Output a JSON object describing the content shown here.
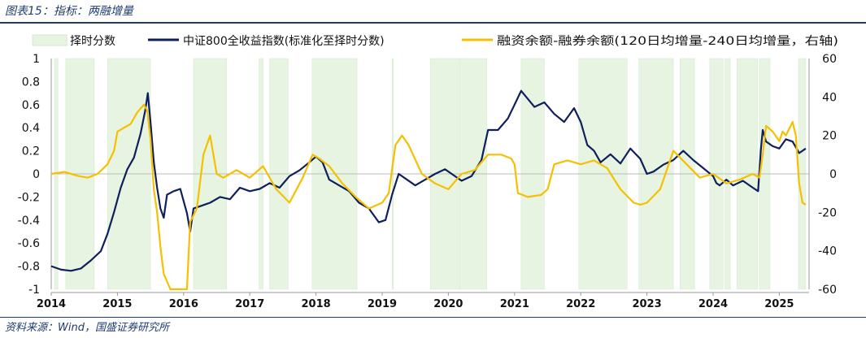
{
  "header": {
    "title": "图表15：指标：两融增量"
  },
  "footer": {
    "source": "资料来源：Wind，国盛证券研究所"
  },
  "colors": {
    "shade": "#e7f4e2",
    "index_line": "#0f1f5c",
    "margin_line": "#f5c000",
    "rule": "#1f3b6f"
  },
  "chart_data": {
    "type": "line",
    "title": "",
    "legend": [
      "择时分数",
      "中证800全收益指数(标准化至择时分数)",
      "融资余额-融券余额(120日均增量-240日均增量，右轴)"
    ],
    "legend_position": "top",
    "y_left": {
      "min": -1,
      "max": 1,
      "ticks": [
        "1",
        "0.8",
        "0.6",
        "0.4",
        "0.2",
        "0",
        "-0.2",
        "-0.4",
        "-0.6",
        "-0.8",
        "-1"
      ]
    },
    "y_right": {
      "min": -60,
      "max": 60,
      "ticks": [
        "60",
        "40",
        "20",
        "0",
        "-20",
        "-40",
        "-60"
      ]
    },
    "x_range": [
      2014.0,
      2025.45
    ],
    "x_ticks": [
      "2014",
      "2015",
      "2016",
      "2017",
      "2018",
      "2019",
      "2020",
      "2021",
      "2022",
      "2023",
      "2024",
      "2025"
    ],
    "timing_score_periods": [
      [
        2014.05,
        2014.1
      ],
      [
        2014.22,
        2014.65
      ],
      [
        2014.85,
        2015.5
      ],
      [
        2016.15,
        2016.65
      ],
      [
        2017.14,
        2017.2
      ],
      [
        2017.3,
        2017.58
      ],
      [
        2017.94,
        2018.62
      ],
      [
        2019.15,
        2019.17
      ],
      [
        2019.73,
        2020.17
      ],
      [
        2020.17,
        2020.58
      ],
      [
        2021.1,
        2021.45
      ],
      [
        2021.97,
        2022.7
      ],
      [
        2022.88,
        2023.4
      ],
      [
        2023.5,
        2023.72
      ],
      [
        2023.95,
        2024.15
      ],
      [
        2024.18,
        2024.26
      ],
      [
        2024.36,
        2024.67
      ],
      [
        2024.7,
        2024.86
      ],
      [
        2025.29,
        2025.4
      ]
    ],
    "series": [
      {
        "name": "中证800全收益指数(标准化至择时分数)",
        "axis": "left",
        "x": [
          2014.0,
          2014.15,
          2014.3,
          2014.45,
          2014.6,
          2014.75,
          2014.85,
          2014.95,
          2015.05,
          2015.15,
          2015.25,
          2015.35,
          2015.42,
          2015.46,
          2015.5,
          2015.55,
          2015.6,
          2015.65,
          2015.7,
          2015.75,
          2015.85,
          2015.95,
          2016.05,
          2016.1,
          2016.15,
          2016.25,
          2016.4,
          2016.55,
          2016.7,
          2016.85,
          2017.0,
          2017.15,
          2017.3,
          2017.45,
          2017.6,
          2017.75,
          2017.9,
          2018.0,
          2018.1,
          2018.2,
          2018.35,
          2018.5,
          2018.65,
          2018.8,
          2018.95,
          2019.05,
          2019.15,
          2019.25,
          2019.35,
          2019.5,
          2019.65,
          2019.8,
          2019.95,
          2020.05,
          2020.2,
          2020.35,
          2020.5,
          2020.6,
          2020.75,
          2020.9,
          2021.0,
          2021.1,
          2021.2,
          2021.3,
          2021.45,
          2021.6,
          2021.75,
          2021.9,
          2022.0,
          2022.1,
          2022.2,
          2022.3,
          2022.45,
          2022.6,
          2022.75,
          2022.9,
          2023.0,
          2023.1,
          2023.25,
          2023.4,
          2023.55,
          2023.7,
          2023.85,
          2024.0,
          2024.05,
          2024.1,
          2024.2,
          2024.3,
          2024.45,
          2024.6,
          2024.68,
          2024.72,
          2024.75,
          2024.8,
          2024.9,
          2025.0,
          2025.1,
          2025.2,
          2025.3,
          2025.4
        ],
        "y": [
          -0.8,
          -0.83,
          -0.84,
          -0.82,
          -0.75,
          -0.67,
          -0.52,
          -0.33,
          -0.12,
          0.04,
          0.14,
          0.35,
          0.55,
          0.7,
          0.45,
          0.1,
          -0.12,
          -0.3,
          -0.38,
          -0.18,
          -0.15,
          -0.13,
          -0.34,
          -0.5,
          -0.3,
          -0.28,
          -0.25,
          -0.2,
          -0.22,
          -0.12,
          -0.15,
          -0.13,
          -0.08,
          -0.12,
          -0.02,
          0.03,
          0.1,
          0.15,
          0.1,
          -0.05,
          -0.1,
          -0.15,
          -0.25,
          -0.3,
          -0.42,
          -0.4,
          -0.18,
          0.0,
          -0.04,
          -0.1,
          -0.05,
          0.0,
          0.04,
          0.0,
          -0.06,
          -0.02,
          0.12,
          0.38,
          0.38,
          0.48,
          0.6,
          0.72,
          0.65,
          0.58,
          0.62,
          0.52,
          0.45,
          0.57,
          0.45,
          0.25,
          0.2,
          0.1,
          0.17,
          0.09,
          0.22,
          0.13,
          0.0,
          0.02,
          0.08,
          0.12,
          0.2,
          0.12,
          0.05,
          -0.02,
          -0.08,
          -0.1,
          -0.05,
          -0.1,
          -0.06,
          -0.12,
          -0.15,
          0.2,
          0.38,
          0.28,
          0.24,
          0.22,
          0.3,
          0.28,
          0.18,
          0.22
        ]
      },
      {
        "name": "融资余额-融券余额(120日均增量-240日均增量，右轴)",
        "axis": "right",
        "x": [
          2014.0,
          2014.2,
          2014.4,
          2014.55,
          2014.7,
          2014.85,
          2014.95,
          2015.0,
          2015.1,
          2015.2,
          2015.3,
          2015.4,
          2015.45,
          2015.5,
          2015.55,
          2015.6,
          2015.65,
          2015.7,
          2015.8,
          2015.9,
          2016.0,
          2016.05,
          2016.1,
          2016.2,
          2016.3,
          2016.4,
          2016.5,
          2016.6,
          2016.7,
          2016.8,
          2016.9,
          2017.0,
          2017.2,
          2017.4,
          2017.6,
          2017.8,
          2017.95,
          2018.05,
          2018.2,
          2018.4,
          2018.6,
          2018.8,
          2019.0,
          2019.1,
          2019.2,
          2019.3,
          2019.4,
          2019.6,
          2019.8,
          2020.0,
          2020.2,
          2020.4,
          2020.6,
          2020.8,
          2020.95,
          2021.0,
          2021.05,
          2021.2,
          2021.4,
          2021.5,
          2021.6,
          2021.8,
          2022.0,
          2022.2,
          2022.4,
          2022.6,
          2022.8,
          2022.9,
          2023.0,
          2023.2,
          2023.4,
          2023.6,
          2023.8,
          2024.0,
          2024.2,
          2024.4,
          2024.6,
          2024.7,
          2024.75,
          2024.8,
          2024.9,
          2025.0,
          2025.05,
          2025.1,
          2025.2,
          2025.25,
          2025.3,
          2025.35,
          2025.4
        ],
        "y": [
          0,
          1,
          -1,
          -2,
          0,
          5,
          12,
          22,
          24,
          26,
          32,
          36,
          33,
          18,
          -8,
          -20,
          -38,
          -52,
          -60,
          -60,
          -60,
          -60,
          -25,
          -18,
          10,
          20,
          0,
          -2,
          0,
          2,
          0,
          -2,
          4,
          -8,
          -15,
          -2,
          10,
          8,
          4,
          -5,
          -12,
          -18,
          -15,
          -10,
          15,
          20,
          15,
          0,
          -5,
          -8,
          0,
          2,
          10,
          10,
          8,
          5,
          -10,
          -12,
          -11,
          -8,
          5,
          7,
          5,
          7,
          3,
          -8,
          -15,
          -16,
          -15,
          -8,
          12,
          5,
          -2,
          0,
          -5,
          -3,
          0,
          -2,
          10,
          25,
          22,
          17,
          22,
          20,
          27,
          20,
          -5,
          -15,
          -16
        ]
      }
    ]
  }
}
